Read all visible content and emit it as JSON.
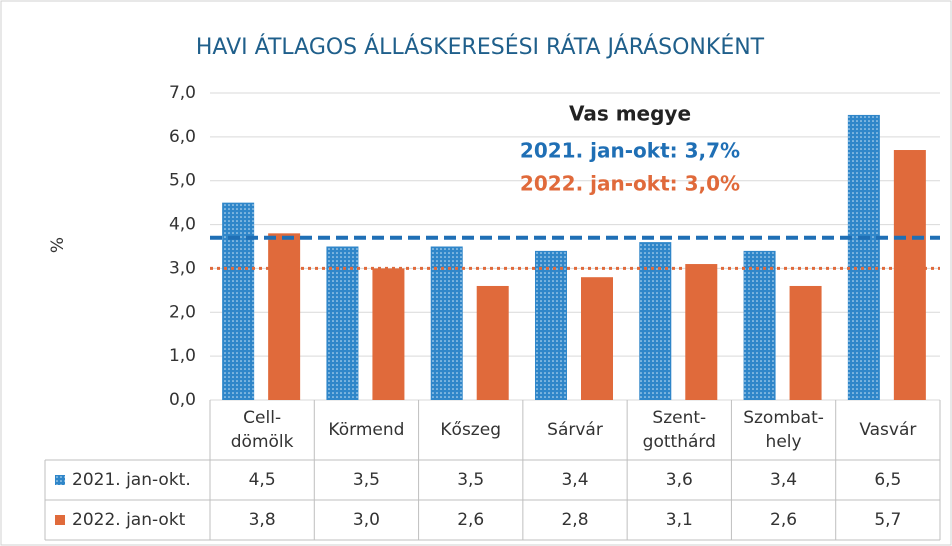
{
  "chart_data": {
    "type": "bar",
    "title": "HAVI ÁTLAGOS ÁLLÁSKERESÉSI RÁTA JÁRÁSONKÉNT",
    "y_label": "%",
    "categories": [
      [
        "Cell-",
        "dömölk"
      ],
      [
        "Körmend"
      ],
      [
        "Kőszeg"
      ],
      [
        "Sárvár"
      ],
      [
        "Szent-",
        "gotthárd"
      ],
      [
        "Szombat-",
        "hely"
      ],
      [
        "Vasvár"
      ]
    ],
    "series": [
      {
        "name": "2021. jan-okt.",
        "color": "#2f86c9",
        "values": [
          4.5,
          3.5,
          3.5,
          3.4,
          3.6,
          3.4,
          6.5
        ],
        "value_labels": [
          "4,5",
          "3,5",
          "3,5",
          "3,4",
          "3,6",
          "3,4",
          "6,5"
        ]
      },
      {
        "name": "2022. jan-okt",
        "color": "#e06a3b",
        "values": [
          3.8,
          3.0,
          2.6,
          2.8,
          3.1,
          2.6,
          5.7
        ],
        "value_labels": [
          "3,8",
          "3,0",
          "2,6",
          "2,8",
          "3,1",
          "2,6",
          "5,7"
        ]
      }
    ],
    "annotation_title": "Vas megye",
    "reference_lines": [
      {
        "value": 3.7,
        "color": "#1f6fb5",
        "label": "2021. jan-okt: 3,7%"
      },
      {
        "value": 3.0,
        "color": "#e06a3b",
        "label": "2022. jan-okt: 3,0%"
      }
    ],
    "ylim": [
      0,
      7
    ],
    "yticks": [
      {
        "value": 0,
        "label": "0,0"
      },
      {
        "value": 1,
        "label": "1,0"
      },
      {
        "value": 2,
        "label": "2,0"
      },
      {
        "value": 3,
        "label": "3,0"
      },
      {
        "value": 4,
        "label": "4,0"
      },
      {
        "value": 5,
        "label": "5,0"
      },
      {
        "value": 6,
        "label": "6,0"
      },
      {
        "value": 7,
        "label": "7,0"
      }
    ],
    "grid": true
  }
}
